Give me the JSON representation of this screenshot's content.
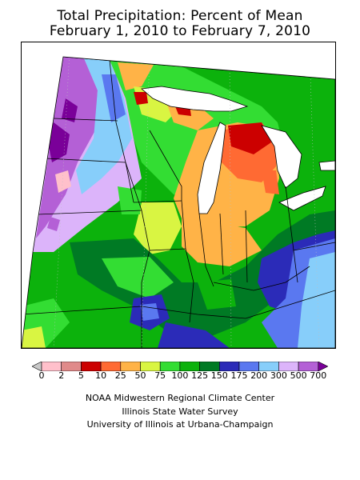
{
  "title_line1": "Total Precipitation: Percent of Mean",
  "title_line2": "February 1, 2010 to February 7, 2010",
  "legend": {
    "type": "colorbar",
    "low_extension_color": "#c8c8c8",
    "high_extension_color": "#7a0099",
    "ticks": [
      "0",
      "2",
      "5",
      "10",
      "25",
      "50",
      "75",
      "100",
      "125",
      "150",
      "175",
      "200",
      "300",
      "500",
      "700"
    ],
    "bins": [
      {
        "range": "0-2",
        "color": "#ffc0cb"
      },
      {
        "range": "2-5",
        "color": "#e08a8a"
      },
      {
        "range": "5-10",
        "color": "#cc0000"
      },
      {
        "range": "10-25",
        "color": "#ff6a33"
      },
      {
        "range": "25-50",
        "color": "#ffb347"
      },
      {
        "range": "50-75",
        "color": "#d9f542"
      },
      {
        "range": "75-100",
        "color": "#33dd33"
      },
      {
        "range": "100-125",
        "color": "#0cb20c"
      },
      {
        "range": "125-150",
        "color": "#007a24"
      },
      {
        "range": "150-175",
        "color": "#2b2bb8"
      },
      {
        "range": "175-200",
        "color": "#5a78f0"
      },
      {
        "range": "200-300",
        "color": "#87cefa"
      },
      {
        "range": "300-500",
        "color": "#dcb4fa"
      },
      {
        "range": "500-700",
        "color": "#b460d6"
      }
    ]
  },
  "credits": {
    "line1": "NOAA Midwestern Regional Climate Center",
    "line2": "Illinois State Water Survey",
    "line3": "University of Illinois at Urbana-Champaign"
  },
  "map": {
    "region": "Midwestern United States",
    "colors": {
      "lake": "#ffffff",
      "boundary": "#000000",
      "gridline": "#bfbfbf"
    }
  }
}
